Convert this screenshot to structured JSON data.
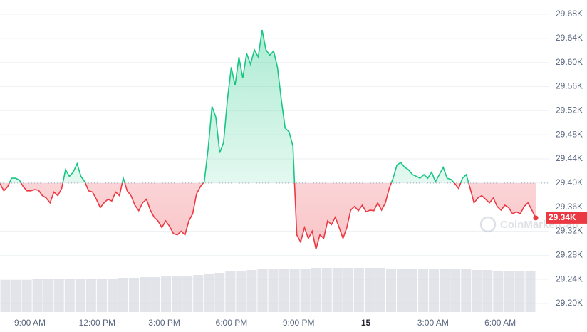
{
  "chart_data": {
    "type": "line",
    "series": [
      {
        "name": "Price",
        "color_up": "#16c784",
        "color_down": "#ea3943",
        "values": [
          29.399,
          29.387,
          29.394,
          29.408,
          29.408,
          29.405,
          29.394,
          29.387,
          29.387,
          29.389,
          29.388,
          29.379,
          29.375,
          29.367,
          29.385,
          29.379,
          29.391,
          29.422,
          29.411,
          29.418,
          29.432,
          29.411,
          29.402,
          29.387,
          29.385,
          29.373,
          29.359,
          29.367,
          29.373,
          29.37,
          29.385,
          29.379,
          29.408,
          29.387,
          29.379,
          29.363,
          29.354,
          29.367,
          29.373,
          29.355,
          29.343,
          29.337,
          29.326,
          29.337,
          29.328,
          29.316,
          29.314,
          29.32,
          29.314,
          29.337,
          29.349,
          29.382,
          29.394,
          29.402,
          29.456,
          29.527,
          29.509,
          29.45,
          29.467,
          29.538,
          29.592,
          29.562,
          29.609,
          29.574,
          29.615,
          29.597,
          29.621,
          29.609,
          29.654,
          29.621,
          29.612,
          29.619,
          29.592,
          29.538,
          29.491,
          29.485,
          29.461,
          29.314,
          29.302,
          29.326,
          29.308,
          29.32,
          29.29,
          29.314,
          29.308,
          29.337,
          29.331,
          29.343,
          29.326,
          29.308,
          29.326,
          29.355,
          29.361,
          29.354,
          29.363,
          29.352,
          29.355,
          29.354,
          29.367,
          29.355,
          29.367,
          29.391,
          29.408,
          29.43,
          29.434,
          29.426,
          29.422,
          29.414,
          29.411,
          29.408,
          29.414,
          29.408,
          29.418,
          29.402,
          29.414,
          29.426,
          29.408,
          29.406,
          29.399,
          29.391,
          29.408,
          29.414,
          29.391,
          29.367,
          29.375,
          29.379,
          29.373,
          29.367,
          29.375,
          29.361,
          29.355,
          29.363,
          29.359,
          29.349,
          29.352,
          29.349,
          29.361,
          29.367,
          29.355,
          29.342
        ]
      }
    ],
    "reference": 29.4,
    "volume": {
      "color": "#d5d9e0",
      "values": [
        45,
        45,
        45,
        46,
        46,
        46,
        46,
        46,
        47,
        47,
        47,
        48,
        48,
        49,
        49,
        50,
        50,
        51,
        52,
        53,
        55,
        57,
        58,
        59,
        60,
        60,
        61,
        61,
        61,
        62,
        62,
        62,
        62,
        62,
        62,
        62,
        61,
        61,
        61,
        61,
        61,
        60,
        60,
        60,
        59,
        59,
        58,
        58,
        58,
        58
      ]
    },
    "last_price_label": "29.34K",
    "watermark": "CoinMarketCap",
    "ylim": [
      29.2,
      29.68
    ],
    "yticks": [
      {
        "value": 29.2,
        "label": "29.20K"
      },
      {
        "value": 29.24,
        "label": "29.24K"
      },
      {
        "value": 29.28,
        "label": "29.28K"
      },
      {
        "value": 29.32,
        "label": "29.32K"
      },
      {
        "value": 29.36,
        "label": "29.36K"
      },
      {
        "value": 29.4,
        "label": "29.40K"
      },
      {
        "value": 29.44,
        "label": "29.44K"
      },
      {
        "value": 29.48,
        "label": "29.48K"
      },
      {
        "value": 29.52,
        "label": "29.52K"
      },
      {
        "value": 29.56,
        "label": "29.56K"
      },
      {
        "value": 29.6,
        "label": "29.60K"
      },
      {
        "value": 29.64,
        "label": "29.64K"
      },
      {
        "value": 29.68,
        "label": "29.68K"
      }
    ],
    "xticks": [
      "9:00 AM",
      "12:00 PM",
      "3:00 PM",
      "6:00 PM",
      "9:00 PM",
      "15",
      "3:00 AM",
      "6:00 AM"
    ],
    "grid": true
  }
}
